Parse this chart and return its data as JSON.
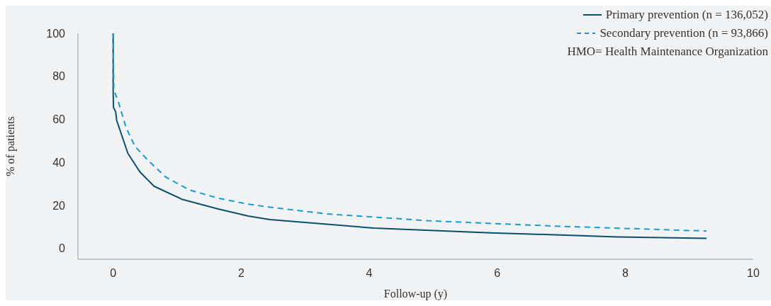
{
  "chart_data": {
    "type": "line",
    "xlabel": "Follow-up (y)",
    "ylabel": "% of patients",
    "xlim": [
      -0.55,
      10
    ],
    "xticks": [
      0,
      2,
      4,
      6,
      8,
      10
    ],
    "ylim": [
      -5,
      100
    ],
    "yticks": [
      0,
      20,
      40,
      60,
      80,
      100
    ],
    "grid": false,
    "legend": "top right",
    "marker": "none",
    "annotations": [
      "HMO= Health Maintenance Organization"
    ],
    "series": [
      {
        "name": "Primary prevention (n = 136,052)",
        "color": "#0b4f71",
        "line_style": "solid",
        "x": [
          0,
          0,
          0.005,
          0.04,
          0.055,
          0.23,
          0.42,
          0.64,
          1.08,
          1.64,
          2.11,
          2.45,
          4.07,
          5.9,
          7.88,
          9.27
        ],
        "values": [
          100,
          72.7,
          65.6,
          63.4,
          59.5,
          44.2,
          35.5,
          28.9,
          22.8,
          18.4,
          15.1,
          13.4,
          9.5,
          7.3,
          5.4,
          4.7
        ]
      },
      {
        "name": "Secondary prevention (n = 93,866)",
        "color": "#1a9ad6",
        "line_style": "dashed",
        "x": [
          0,
          0.01,
          0.085,
          0.2,
          0.34,
          0.53,
          0.82,
          1.19,
          1.64,
          2.11,
          2.45,
          3.33,
          4.92,
          6.9,
          9.27
        ],
        "values": [
          100,
          73.8,
          67.8,
          56.3,
          47.5,
          41.4,
          33.2,
          27.2,
          23.4,
          20.6,
          19.2,
          16.1,
          12.9,
          10.4,
          8.1
        ]
      }
    ]
  }
}
